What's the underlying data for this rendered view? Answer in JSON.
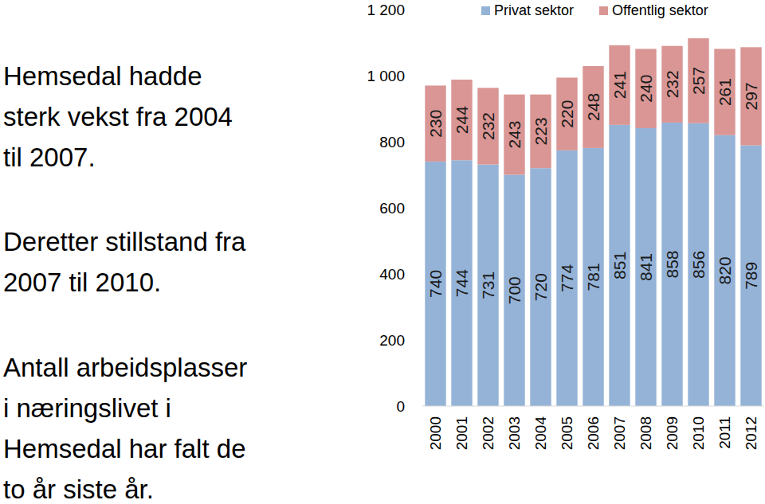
{
  "chart_data": {
    "type": "bar",
    "stacked": true,
    "data_labels": true,
    "legend": "top-right",
    "grid": false,
    "categories": [
      "2000",
      "2001",
      "2002",
      "2003",
      "2004",
      "2005",
      "2006",
      "2007",
      "2008",
      "2009",
      "2010",
      "2011",
      "2012"
    ],
    "series": [
      {
        "name": "Privat sektor",
        "color": "#95b3d7",
        "values": [
          740,
          744,
          731,
          700,
          720,
          774,
          781,
          851,
          841,
          858,
          856,
          820,
          789
        ]
      },
      {
        "name": "Offentlig sektor",
        "color": "#d99694",
        "values": [
          230,
          244,
          232,
          243,
          223,
          220,
          248,
          241,
          240,
          232,
          257,
          261,
          297
        ]
      }
    ],
    "ylim": [
      0,
      1200
    ],
    "yticks": [
      0,
      200,
      400,
      600,
      800,
      {
        "value": 1000,
        "label": "1 000"
      },
      {
        "value": 1200,
        "label": "1 200"
      }
    ],
    "annotations": [
      [
        "Hemsedal hadde",
        "sterk vekst fra 2004",
        "til 2007."
      ],
      [
        "Deretter stillstand fra",
        "2007 til 2010."
      ],
      [
        "Antall arbeidsplasser",
        "i næringslivet i",
        "Hemsedal har falt de",
        "to år siste år."
      ]
    ]
  }
}
